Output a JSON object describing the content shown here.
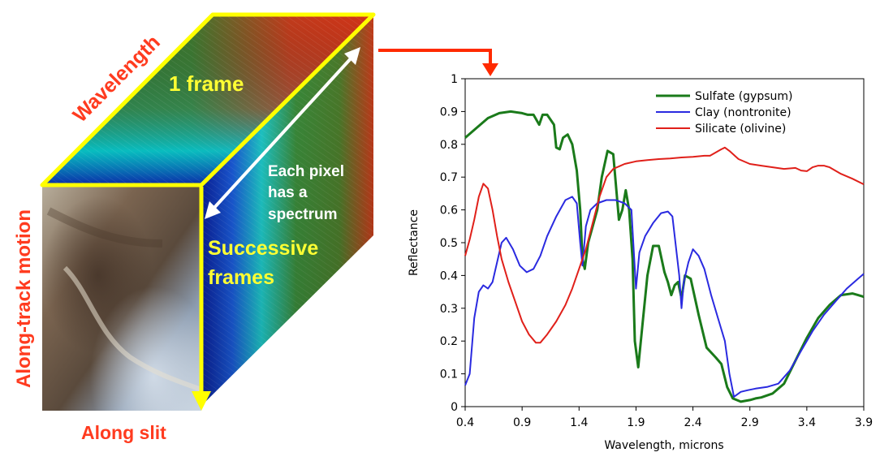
{
  "cube": {
    "label_wavelength": "Wavelength",
    "label_frame": "1 frame",
    "label_pixel_line1": "Each pixel",
    "label_pixel_line2": "has a",
    "label_pixel_line3": "spectrum",
    "label_successive_line1": "Successive",
    "label_successive_line2": "frames",
    "label_along_track": "Along-track motion",
    "label_along_slit": "Along slit"
  },
  "colors": {
    "label_red": "#ff3b1f",
    "frame_yellow": "#ffff00",
    "arrow_white": "#ffffff",
    "connector_red": "#ff2a00"
  },
  "chart_data": {
    "type": "line",
    "xlabel": "Wavelength, microns",
    "ylabel": "Reflectance",
    "xlim": [
      0.4,
      3.9
    ],
    "ylim": [
      0,
      1
    ],
    "xticks": [
      "0.4",
      "0.9",
      "1.4",
      "1.9",
      "2.4",
      "2.9",
      "3.4",
      "3.9"
    ],
    "yticks": [
      "0",
      "0.1",
      "0.2",
      "0.3",
      "0.4",
      "0.5",
      "0.6",
      "0.7",
      "0.8",
      "0.9",
      "1"
    ],
    "grid": false,
    "legend_position": "top-right",
    "series": [
      {
        "name": "Sulfate (gypsum)",
        "color": "#1a7a1a",
        "points": [
          [
            0.4,
            0.82
          ],
          [
            0.5,
            0.85
          ],
          [
            0.6,
            0.88
          ],
          [
            0.7,
            0.895
          ],
          [
            0.8,
            0.9
          ],
          [
            0.9,
            0.895
          ],
          [
            0.95,
            0.89
          ],
          [
            1.0,
            0.89
          ],
          [
            1.05,
            0.86
          ],
          [
            1.08,
            0.89
          ],
          [
            1.12,
            0.89
          ],
          [
            1.18,
            0.86
          ],
          [
            1.2,
            0.79
          ],
          [
            1.23,
            0.785
          ],
          [
            1.26,
            0.82
          ],
          [
            1.3,
            0.83
          ],
          [
            1.34,
            0.8
          ],
          [
            1.38,
            0.72
          ],
          [
            1.41,
            0.6
          ],
          [
            1.43,
            0.45
          ],
          [
            1.45,
            0.42
          ],
          [
            1.48,
            0.5
          ],
          [
            1.52,
            0.55
          ],
          [
            1.56,
            0.6
          ],
          [
            1.6,
            0.7
          ],
          [
            1.65,
            0.78
          ],
          [
            1.7,
            0.77
          ],
          [
            1.73,
            0.65
          ],
          [
            1.75,
            0.57
          ],
          [
            1.78,
            0.6
          ],
          [
            1.81,
            0.66
          ],
          [
            1.84,
            0.6
          ],
          [
            1.87,
            0.45
          ],
          [
            1.89,
            0.2
          ],
          [
            1.92,
            0.12
          ],
          [
            1.96,
            0.26
          ],
          [
            2.0,
            0.4
          ],
          [
            2.05,
            0.49
          ],
          [
            2.1,
            0.49
          ],
          [
            2.15,
            0.41
          ],
          [
            2.18,
            0.38
          ],
          [
            2.21,
            0.34
          ],
          [
            2.24,
            0.37
          ],
          [
            2.27,
            0.38
          ],
          [
            2.3,
            0.33
          ],
          [
            2.33,
            0.4
          ],
          [
            2.38,
            0.39
          ],
          [
            2.45,
            0.28
          ],
          [
            2.52,
            0.18
          ],
          [
            2.6,
            0.15
          ],
          [
            2.65,
            0.13
          ],
          [
            2.7,
            0.06
          ],
          [
            2.75,
            0.025
          ],
          [
            2.82,
            0.015
          ],
          [
            2.9,
            0.02
          ],
          [
            2.95,
            0.025
          ],
          [
            3.0,
            0.028
          ],
          [
            3.1,
            0.04
          ],
          [
            3.2,
            0.07
          ],
          [
            3.3,
            0.14
          ],
          [
            3.4,
            0.21
          ],
          [
            3.5,
            0.27
          ],
          [
            3.6,
            0.31
          ],
          [
            3.7,
            0.34
          ],
          [
            3.8,
            0.345
          ],
          [
            3.85,
            0.34
          ],
          [
            3.9,
            0.335
          ]
        ]
      },
      {
        "name": "Clay (nontronite)",
        "color": "#2a2ae0",
        "points": [
          [
            0.4,
            0.065
          ],
          [
            0.44,
            0.1
          ],
          [
            0.48,
            0.27
          ],
          [
            0.52,
            0.35
          ],
          [
            0.56,
            0.37
          ],
          [
            0.6,
            0.36
          ],
          [
            0.64,
            0.38
          ],
          [
            0.68,
            0.44
          ],
          [
            0.72,
            0.5
          ],
          [
            0.76,
            0.515
          ],
          [
            0.82,
            0.48
          ],
          [
            0.88,
            0.43
          ],
          [
            0.94,
            0.41
          ],
          [
            1.0,
            0.42
          ],
          [
            1.06,
            0.46
          ],
          [
            1.12,
            0.52
          ],
          [
            1.2,
            0.58
          ],
          [
            1.28,
            0.63
          ],
          [
            1.34,
            0.64
          ],
          [
            1.38,
            0.62
          ],
          [
            1.41,
            0.5
          ],
          [
            1.43,
            0.43
          ],
          [
            1.46,
            0.55
          ],
          [
            1.5,
            0.6
          ],
          [
            1.56,
            0.62
          ],
          [
            1.64,
            0.63
          ],
          [
            1.72,
            0.63
          ],
          [
            1.8,
            0.62
          ],
          [
            1.86,
            0.6
          ],
          [
            1.9,
            0.36
          ],
          [
            1.93,
            0.47
          ],
          [
            1.98,
            0.52
          ],
          [
            2.05,
            0.56
          ],
          [
            2.12,
            0.59
          ],
          [
            2.18,
            0.595
          ],
          [
            2.22,
            0.58
          ],
          [
            2.26,
            0.46
          ],
          [
            2.28,
            0.4
          ],
          [
            2.3,
            0.3
          ],
          [
            2.32,
            0.38
          ],
          [
            2.36,
            0.44
          ],
          [
            2.4,
            0.48
          ],
          [
            2.45,
            0.46
          ],
          [
            2.5,
            0.42
          ],
          [
            2.56,
            0.34
          ],
          [
            2.62,
            0.27
          ],
          [
            2.68,
            0.2
          ],
          [
            2.72,
            0.1
          ],
          [
            2.76,
            0.03
          ],
          [
            2.82,
            0.045
          ],
          [
            2.88,
            0.05
          ],
          [
            2.95,
            0.055
          ],
          [
            3.05,
            0.06
          ],
          [
            3.15,
            0.07
          ],
          [
            3.25,
            0.11
          ],
          [
            3.35,
            0.17
          ],
          [
            3.45,
            0.23
          ],
          [
            3.55,
            0.28
          ],
          [
            3.65,
            0.32
          ],
          [
            3.75,
            0.36
          ],
          [
            3.85,
            0.39
          ],
          [
            3.9,
            0.405
          ]
        ]
      },
      {
        "name": "Silicate (olivine)",
        "color": "#e0201a",
        "points": [
          [
            0.4,
            0.46
          ],
          [
            0.44,
            0.51
          ],
          [
            0.48,
            0.57
          ],
          [
            0.52,
            0.64
          ],
          [
            0.56,
            0.68
          ],
          [
            0.6,
            0.665
          ],
          [
            0.64,
            0.6
          ],
          [
            0.68,
            0.52
          ],
          [
            0.72,
            0.45
          ],
          [
            0.78,
            0.38
          ],
          [
            0.84,
            0.32
          ],
          [
            0.9,
            0.26
          ],
          [
            0.96,
            0.22
          ],
          [
            1.02,
            0.195
          ],
          [
            1.06,
            0.195
          ],
          [
            1.12,
            0.22
          ],
          [
            1.2,
            0.26
          ],
          [
            1.28,
            0.31
          ],
          [
            1.34,
            0.36
          ],
          [
            1.4,
            0.42
          ],
          [
            1.46,
            0.48
          ],
          [
            1.52,
            0.56
          ],
          [
            1.58,
            0.64
          ],
          [
            1.64,
            0.7
          ],
          [
            1.7,
            0.725
          ],
          [
            1.8,
            0.74
          ],
          [
            1.9,
            0.748
          ],
          [
            2.0,
            0.752
          ],
          [
            2.1,
            0.755
          ],
          [
            2.2,
            0.757
          ],
          [
            2.3,
            0.76
          ],
          [
            2.4,
            0.762
          ],
          [
            2.5,
            0.765
          ],
          [
            2.55,
            0.765
          ],
          [
            2.6,
            0.775
          ],
          [
            2.65,
            0.785
          ],
          [
            2.68,
            0.79
          ],
          [
            2.72,
            0.78
          ],
          [
            2.8,
            0.755
          ],
          [
            2.9,
            0.74
          ],
          [
            3.0,
            0.735
          ],
          [
            3.1,
            0.73
          ],
          [
            3.2,
            0.725
          ],
          [
            3.3,
            0.728
          ],
          [
            3.35,
            0.72
          ],
          [
            3.4,
            0.718
          ],
          [
            3.45,
            0.73
          ],
          [
            3.5,
            0.735
          ],
          [
            3.55,
            0.735
          ],
          [
            3.6,
            0.73
          ],
          [
            3.7,
            0.71
          ],
          [
            3.8,
            0.695
          ],
          [
            3.9,
            0.678
          ]
        ]
      }
    ]
  }
}
